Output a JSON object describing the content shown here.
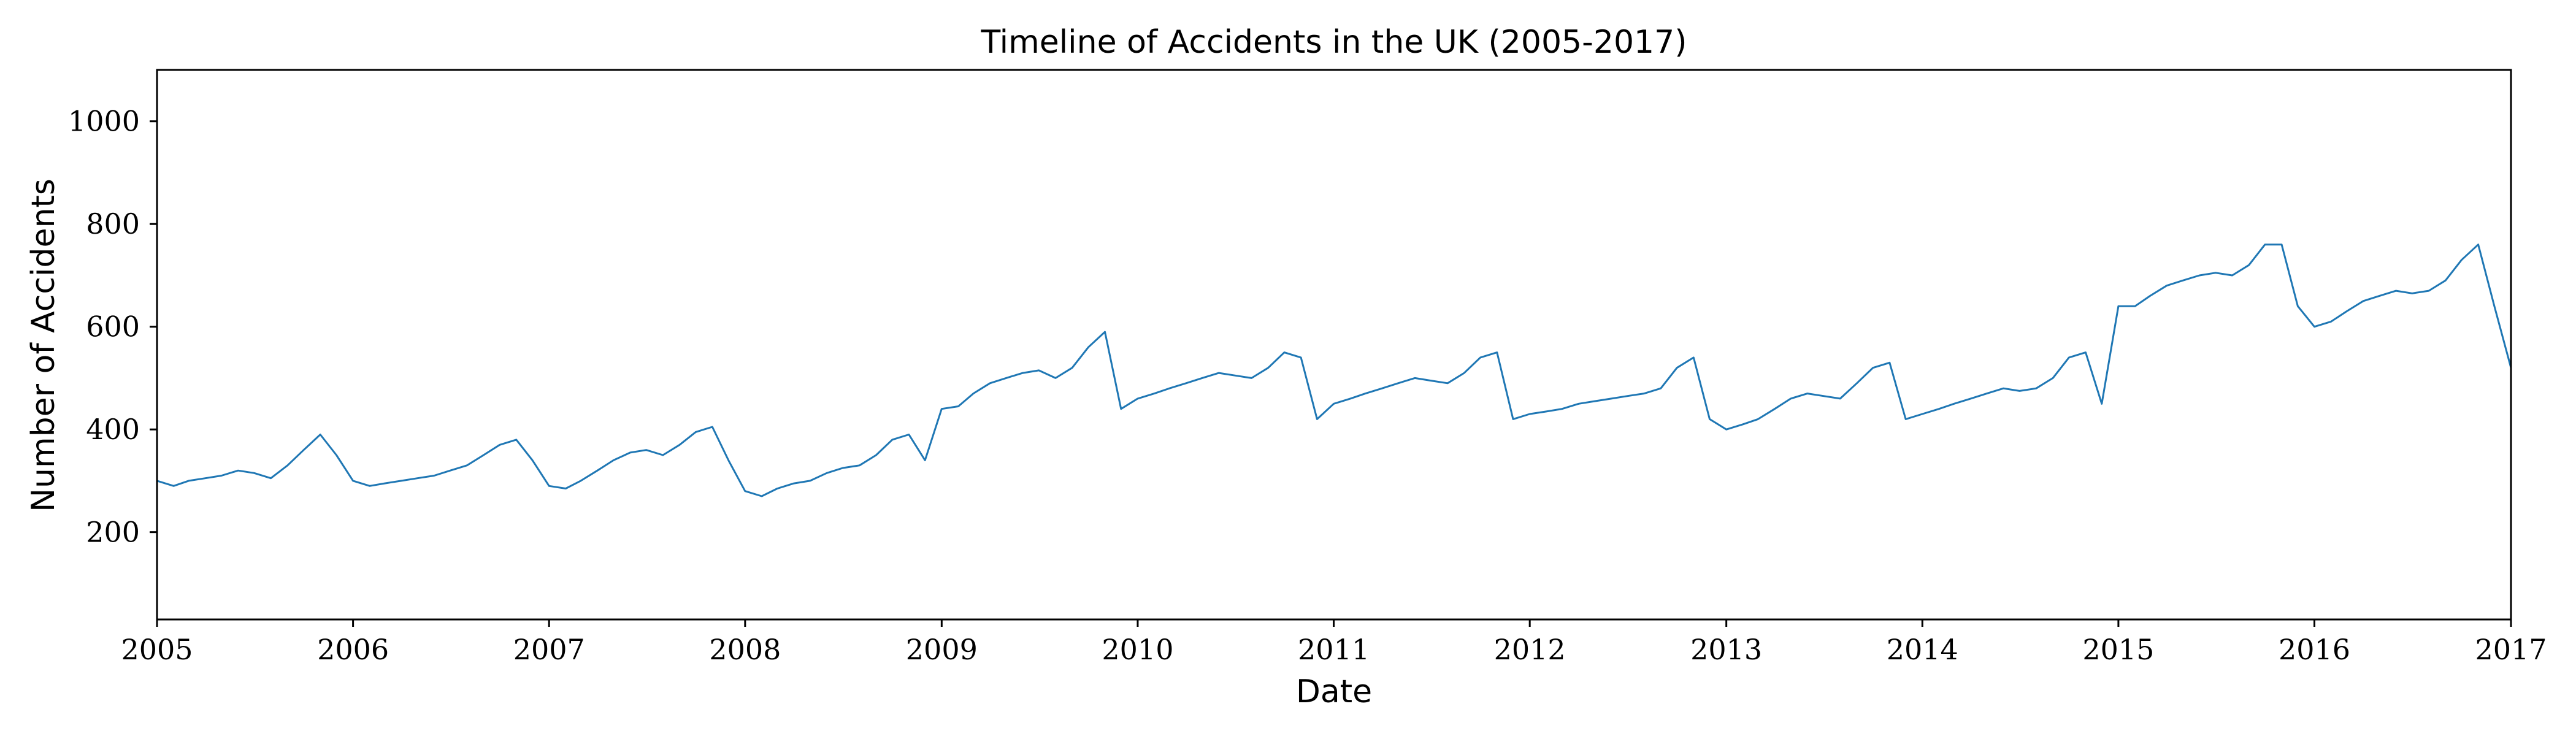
{
  "chart_data": {
    "type": "line",
    "title": "Timeline of Accidents in the UK (2005-2017)",
    "xlabel": "Date",
    "ylabel": "Number of Accidents",
    "x_ticks": [
      "2005",
      "2006",
      "2007",
      "2008",
      "2009",
      "2010",
      "2011",
      "2012",
      "2013",
      "2014",
      "2015",
      "2016",
      "2017"
    ],
    "y_ticks": [
      200,
      400,
      600,
      800,
      1000
    ],
    "xlim": [
      "2005-01-01",
      "2017-01-01"
    ],
    "ylim": [
      30,
      1100
    ],
    "grid": false,
    "legend": "none",
    "line_color": "#1f77b4",
    "series": [
      {
        "x": [
          "2005-01-01",
          "2005-02-01",
          "2005-03-01",
          "2005-04-01",
          "2005-05-01",
          "2005-06-01",
          "2005-07-01",
          "2005-08-01",
          "2005-09-01",
          "2005-10-01",
          "2005-11-01",
          "2005-12-01",
          "2006-01-01",
          "2006-02-01",
          "2006-03-01",
          "2006-04-01",
          "2006-05-01",
          "2006-06-01",
          "2006-07-01",
          "2006-08-01",
          "2006-09-01",
          "2006-10-01",
          "2006-11-01",
          "2006-12-01",
          "2007-01-01",
          "2007-02-01",
          "2007-03-01",
          "2007-04-01",
          "2007-05-01",
          "2007-06-01",
          "2007-07-01",
          "2007-08-01",
          "2007-09-01",
          "2007-10-01",
          "2007-11-01",
          "2007-12-01",
          "2008-01-01",
          "2008-02-01",
          "2008-03-01",
          "2008-04-01",
          "2008-05-01",
          "2008-06-01",
          "2008-07-01",
          "2008-08-01",
          "2008-09-01",
          "2008-10-01",
          "2008-11-01",
          "2008-12-01",
          "2009-01-01",
          "2009-02-01",
          "2009-03-01",
          "2009-04-01",
          "2009-05-01",
          "2009-06-01",
          "2009-07-01",
          "2009-08-01",
          "2009-09-01",
          "2009-10-01",
          "2009-11-01",
          "2009-12-01",
          "2010-01-01",
          "2010-02-01",
          "2010-03-01",
          "2010-04-01",
          "2010-05-01",
          "2010-06-01",
          "2010-07-01",
          "2010-08-01",
          "2010-09-01",
          "2010-10-01",
          "2010-11-01",
          "2010-12-01",
          "2011-01-01",
          "2011-02-01",
          "2011-03-01",
          "2011-04-01",
          "2011-05-01",
          "2011-06-01",
          "2011-07-01",
          "2011-08-01",
          "2011-09-01",
          "2011-10-01",
          "2011-11-01",
          "2011-12-01",
          "2012-01-01",
          "2012-02-01",
          "2012-03-01",
          "2012-04-01",
          "2012-05-01",
          "2012-06-01",
          "2012-07-01",
          "2012-08-01",
          "2012-09-01",
          "2012-10-01",
          "2012-11-01",
          "2012-12-01",
          "2013-01-01",
          "2013-02-01",
          "2013-03-01",
          "2013-04-01",
          "2013-05-01",
          "2013-06-01",
          "2013-07-01",
          "2013-08-01",
          "2013-09-01",
          "2013-10-01",
          "2013-11-01",
          "2013-12-01",
          "2014-01-01",
          "2014-02-01",
          "2014-03-01",
          "2014-04-01",
          "2014-05-01",
          "2014-06-01",
          "2014-07-01",
          "2014-08-01",
          "2014-09-01",
          "2014-10-01",
          "2014-11-01",
          "2014-12-01",
          "2015-01-01",
          "2015-02-01",
          "2015-03-01",
          "2015-04-01",
          "2015-05-01",
          "2015-06-01",
          "2015-07-01",
          "2015-08-01",
          "2015-09-01",
          "2015-10-01",
          "2015-11-01",
          "2015-12-01",
          "2016-01-01",
          "2016-02-01",
          "2016-03-01",
          "2016-04-01",
          "2016-05-01",
          "2016-06-01",
          "2016-07-01",
          "2016-08-01",
          "2016-09-01",
          "2016-10-01",
          "2016-11-01",
          "2016-12-01",
          "2017-01-01"
        ],
        "y": [
          300,
          290,
          300,
          305,
          310,
          320,
          315,
          305,
          330,
          360,
          390,
          350,
          300,
          290,
          295,
          300,
          305,
          310,
          320,
          330,
          350,
          370,
          380,
          340,
          290,
          285,
          300,
          320,
          340,
          355,
          360,
          350,
          370,
          395,
          405,
          340,
          280,
          270,
          285,
          295,
          300,
          315,
          325,
          330,
          350,
          380,
          390,
          340,
          440,
          445,
          470,
          490,
          500,
          510,
          515,
          500,
          520,
          560,
          590,
          440,
          460,
          470,
          480,
          490,
          500,
          510,
          505,
          500,
          520,
          550,
          540,
          420,
          450,
          460,
          470,
          480,
          490,
          500,
          495,
          490,
          510,
          540,
          550,
          420,
          430,
          435,
          440,
          450,
          455,
          460,
          465,
          470,
          480,
          520,
          540,
          420,
          400,
          410,
          420,
          440,
          460,
          470,
          465,
          460,
          490,
          520,
          530,
          420,
          430,
          440,
          450,
          460,
          470,
          480,
          475,
          480,
          500,
          540,
          550,
          450,
          640,
          640,
          660,
          680,
          690,
          700,
          705,
          700,
          720,
          760,
          760,
          640,
          600,
          610,
          630,
          650,
          660,
          670,
          665,
          670,
          690,
          730,
          760,
          640,
          520
        ]
      }
    ]
  }
}
